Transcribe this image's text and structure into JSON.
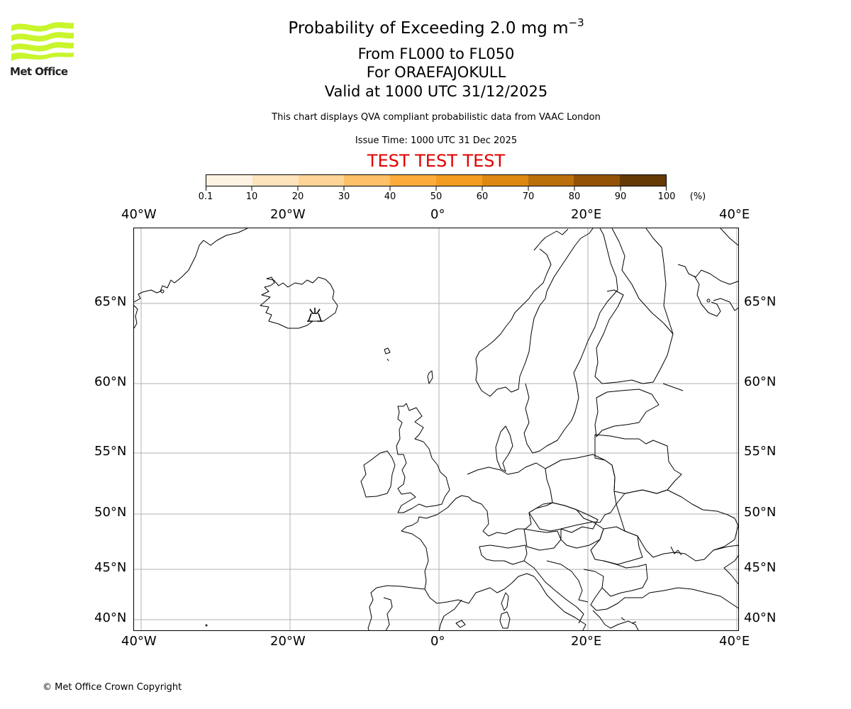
{
  "logo": {
    "name": "Met Office",
    "color": "#c8f52c"
  },
  "header": {
    "title_main": "Probability of Exceeding 2.0 mg m",
    "title_sup": "−3",
    "flight_levels": "From FL000 to FL050",
    "volcano": "For ORAEFAJOKULL",
    "valid": "Valid at 1000 UTC 31/12/2025",
    "description": "This chart displays QVA compliant probabilistic data from VAAC London",
    "issue_time": "Issue Time: 1000 UTC 31 Dec 2025",
    "test_banner": "TEST TEST TEST",
    "test_color": "#e00000"
  },
  "colorbar": {
    "unit": "(%)",
    "ticks": [
      "0.1",
      "10",
      "20",
      "30",
      "40",
      "50",
      "60",
      "70",
      "80",
      "90",
      "100"
    ],
    "colors": [
      "#fef3e2",
      "#fee3bd",
      "#fed597",
      "#fec068",
      "#fdac3c",
      "#f39c1f",
      "#dc8812",
      "#bb6f0a",
      "#935306",
      "#653a05"
    ]
  },
  "map": {
    "lon_labels": [
      "40°W",
      "20°W",
      "0°",
      "20°E",
      "40°E"
    ],
    "lat_labels": [
      "65°N",
      "60°N",
      "55°N",
      "50°N",
      "45°N",
      "40°N"
    ],
    "volcano_marker": "volcano-icon",
    "gridline_color": "#b0b0b0"
  },
  "chart_data": {
    "type": "map",
    "title": "Probability of Exceeding 2.0 mg m−3",
    "subtitle": [
      "From FL000 to FL050",
      "For ORAEFAJOKULL",
      "Valid at 1000 UTC 31/12/2025"
    ],
    "extent": {
      "lon": [
        -41,
        40.5
      ],
      "lat": [
        39,
        69
      ]
    },
    "xticks": [
      "40°W",
      "20°W",
      "0°",
      "20°E",
      "40°E"
    ],
    "yticks": [
      "65°N",
      "60°N",
      "55°N",
      "50°N",
      "45°N",
      "40°N"
    ],
    "colorbar": {
      "label": "(%)",
      "bounds": [
        0.1,
        10,
        20,
        30,
        40,
        50,
        60,
        70,
        80,
        90,
        100
      ]
    },
    "grid": true,
    "markers": [
      {
        "name": "Oraefajokull volcano",
        "lon": -16.6,
        "lat": 64.0
      }
    ],
    "filled_regions": []
  },
  "footer": {
    "copyright": "© Met Office Crown Copyright"
  }
}
